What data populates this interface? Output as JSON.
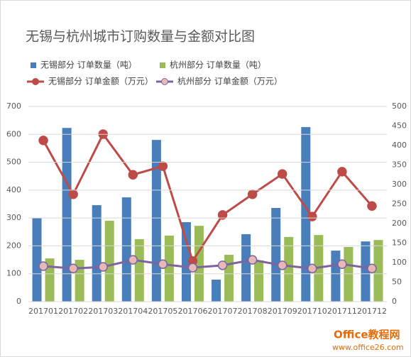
{
  "chart_data": {
    "type": "bar",
    "title": "无锡与杭州城市订购数量与金额对比图",
    "categories": [
      "201701",
      "201702",
      "201703",
      "201704",
      "201705",
      "201706",
      "201707",
      "201708",
      "201709",
      "201710",
      "201711",
      "201712"
    ],
    "series": [
      {
        "name": "无锡部分 订单数量（吨）",
        "type": "bar",
        "color": "#4a7ebb",
        "values": [
          300,
          623,
          346,
          374,
          580,
          285,
          79,
          242,
          336,
          626,
          183,
          216
        ]
      },
      {
        "name": "杭州部分 订单数量（吨）",
        "type": "bar",
        "color": "#9bbb59",
        "values": [
          155,
          150,
          290,
          224,
          237,
          272,
          168,
          148,
          232,
          239,
          196,
          221
        ]
      },
      {
        "name": "无锡部分 订单金额（万元）",
        "type": "line",
        "axis": "y2",
        "color": "#be4b48",
        "marker_color": "#be4b48",
        "values": [
          413,
          275,
          429,
          325,
          347,
          104,
          222,
          275,
          327,
          218,
          333,
          245
        ]
      },
      {
        "name": "杭州部分 订单金额（万元）",
        "type": "line",
        "axis": "y2",
        "color": "#7e649e",
        "marker_color": "#e6b9b8",
        "values": [
          91,
          85,
          89,
          107,
          96,
          87,
          93,
          107,
          93,
          85,
          96,
          85
        ]
      }
    ],
    "ylim": [
      0,
      700
    ],
    "yticks": [
      0,
      100,
      200,
      300,
      400,
      500,
      600,
      700
    ],
    "y2lim": [
      0,
      500
    ],
    "y2ticks": [
      0,
      50,
      100,
      150,
      200,
      250,
      300,
      350,
      400,
      450,
      500
    ],
    "grid": true,
    "watermark": [
      "Office教程网",
      "www.office26.com"
    ]
  }
}
